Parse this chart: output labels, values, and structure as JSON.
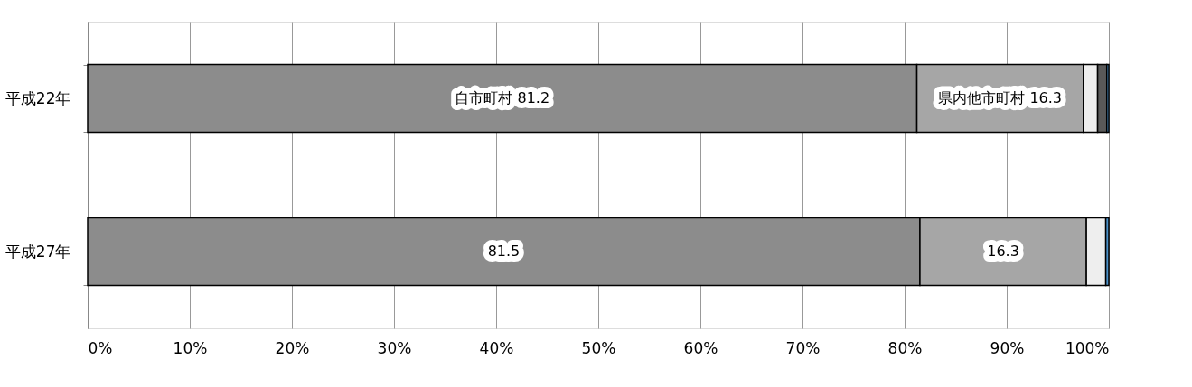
{
  "chart_data": {
    "type": "bar",
    "orientation": "horizontal",
    "stacked": true,
    "categories": [
      "平成22年",
      "平成27年"
    ],
    "series": [
      {
        "name": "自市町村",
        "color": "#8c8c8c",
        "values": [
          81.2,
          81.5
        ],
        "value_labels": [
          "81.2",
          "81.5"
        ]
      },
      {
        "name": "県内他市町村",
        "color": "#a6a6a6",
        "values": [
          16.3,
          16.3
        ],
        "value_labels": [
          "16.3",
          "16.3"
        ]
      },
      {
        "color": "#eeeeee",
        "values": [
          1.4,
          1.9
        ]
      },
      {
        "color": "#595959",
        "values": [
          0.9,
          null
        ]
      },
      {
        "color": "#4a90c8",
        "values": [
          0.2,
          0.3
        ]
      }
    ],
    "xlim": [
      0,
      100
    ],
    "xticks": [
      {
        "value": 0,
        "label": "0%"
      },
      {
        "value": 10,
        "label": "10%"
      },
      {
        "value": 20,
        "label": "20%"
      },
      {
        "value": 30,
        "label": "30%"
      },
      {
        "value": 40,
        "label": "40%"
      },
      {
        "value": 50,
        "label": "50%"
      },
      {
        "value": 60,
        "label": "60%"
      },
      {
        "value": 70,
        "label": "70%"
      },
      {
        "value": 80,
        "label": "80%"
      },
      {
        "value": 90,
        "label": "90%"
      },
      {
        "value": 100,
        "label": "100%"
      }
    ],
    "grid": "x",
    "legend": false
  }
}
